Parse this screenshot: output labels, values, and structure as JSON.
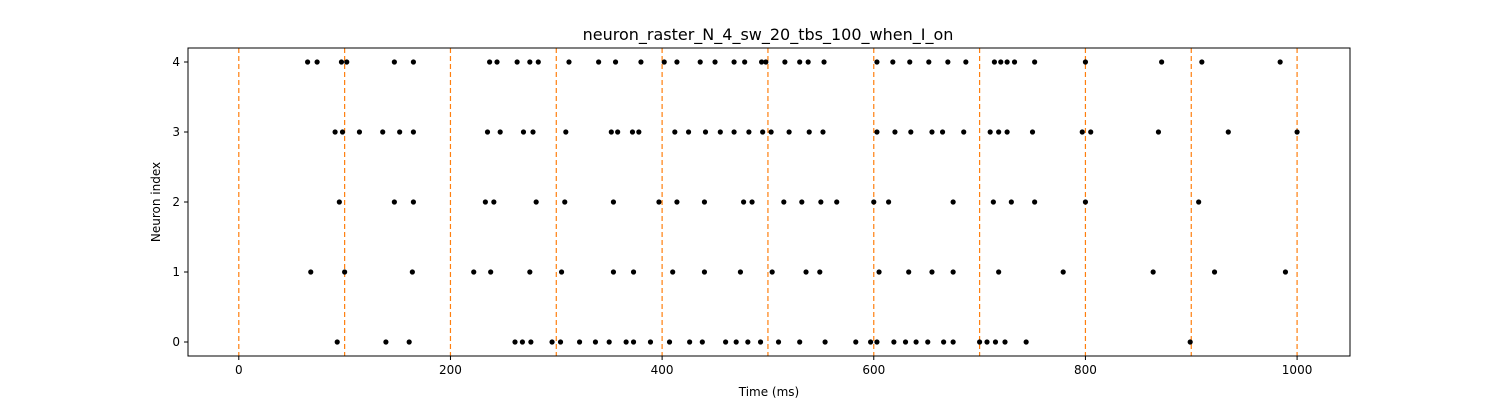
{
  "chart_data": {
    "type": "scatter",
    "title": "neuron_raster_N_4_sw_20_tbs_100_when_I_on",
    "xlabel": "Time (ms)",
    "ylabel": "Neuron index",
    "xlim": [
      -48,
      1050
    ],
    "ylim": [
      -0.2,
      4.2
    ],
    "xticks": [
      0,
      200,
      400,
      600,
      800,
      1000
    ],
    "yticks": [
      0,
      1,
      2,
      3,
      4
    ],
    "grid": false,
    "marker_color": "#000000",
    "line_color": "#ff7f0e",
    "vlines": [
      0,
      100,
      200,
      300,
      400,
      500,
      600,
      700,
      800,
      900,
      1000
    ],
    "series": [
      {
        "neuron": 4,
        "x": [
          65,
          74,
          97,
          102,
          147,
          165,
          237,
          244,
          263,
          275,
          283,
          312,
          340,
          356,
          380,
          402,
          414,
          436,
          450,
          468,
          478,
          494,
          498,
          516,
          530,
          538,
          553,
          603,
          618,
          634,
          652,
          670,
          687,
          714,
          720,
          726,
          733,
          752,
          800,
          872,
          910,
          984
        ]
      },
      {
        "neuron": 3,
        "x": [
          91,
          98,
          114,
          136,
          152,
          165,
          235,
          247,
          269,
          278,
          309,
          352,
          358,
          372,
          378,
          412,
          425,
          441,
          455,
          468,
          482,
          495,
          503,
          520,
          539,
          552,
          603,
          620,
          635,
          655,
          665,
          685,
          710,
          718,
          726,
          750,
          797,
          805,
          869,
          935,
          1000
        ]
      },
      {
        "neuron": 2,
        "x": [
          95,
          147,
          165,
          233,
          241,
          281,
          308,
          354,
          397,
          414,
          440,
          477,
          485,
          515,
          532,
          550,
          565,
          600,
          614,
          675,
          713,
          730,
          752,
          800,
          907
        ]
      },
      {
        "neuron": 1,
        "x": [
          68,
          100,
          164,
          222,
          238,
          275,
          305,
          354,
          373,
          410,
          440,
          474,
          504,
          536,
          549,
          605,
          633,
          655,
          675,
          718,
          779,
          864,
          922,
          989
        ]
      },
      {
        "neuron": 0,
        "x": [
          93,
          139,
          161,
          261,
          268,
          276,
          296,
          304,
          322,
          337,
          350,
          366,
          373,
          389,
          407,
          426,
          438,
          460,
          470,
          481,
          493,
          510,
          530,
          554,
          583,
          597,
          603,
          619,
          630,
          640,
          651,
          666,
          675,
          700,
          707,
          715,
          724,
          744,
          899
        ]
      }
    ]
  }
}
